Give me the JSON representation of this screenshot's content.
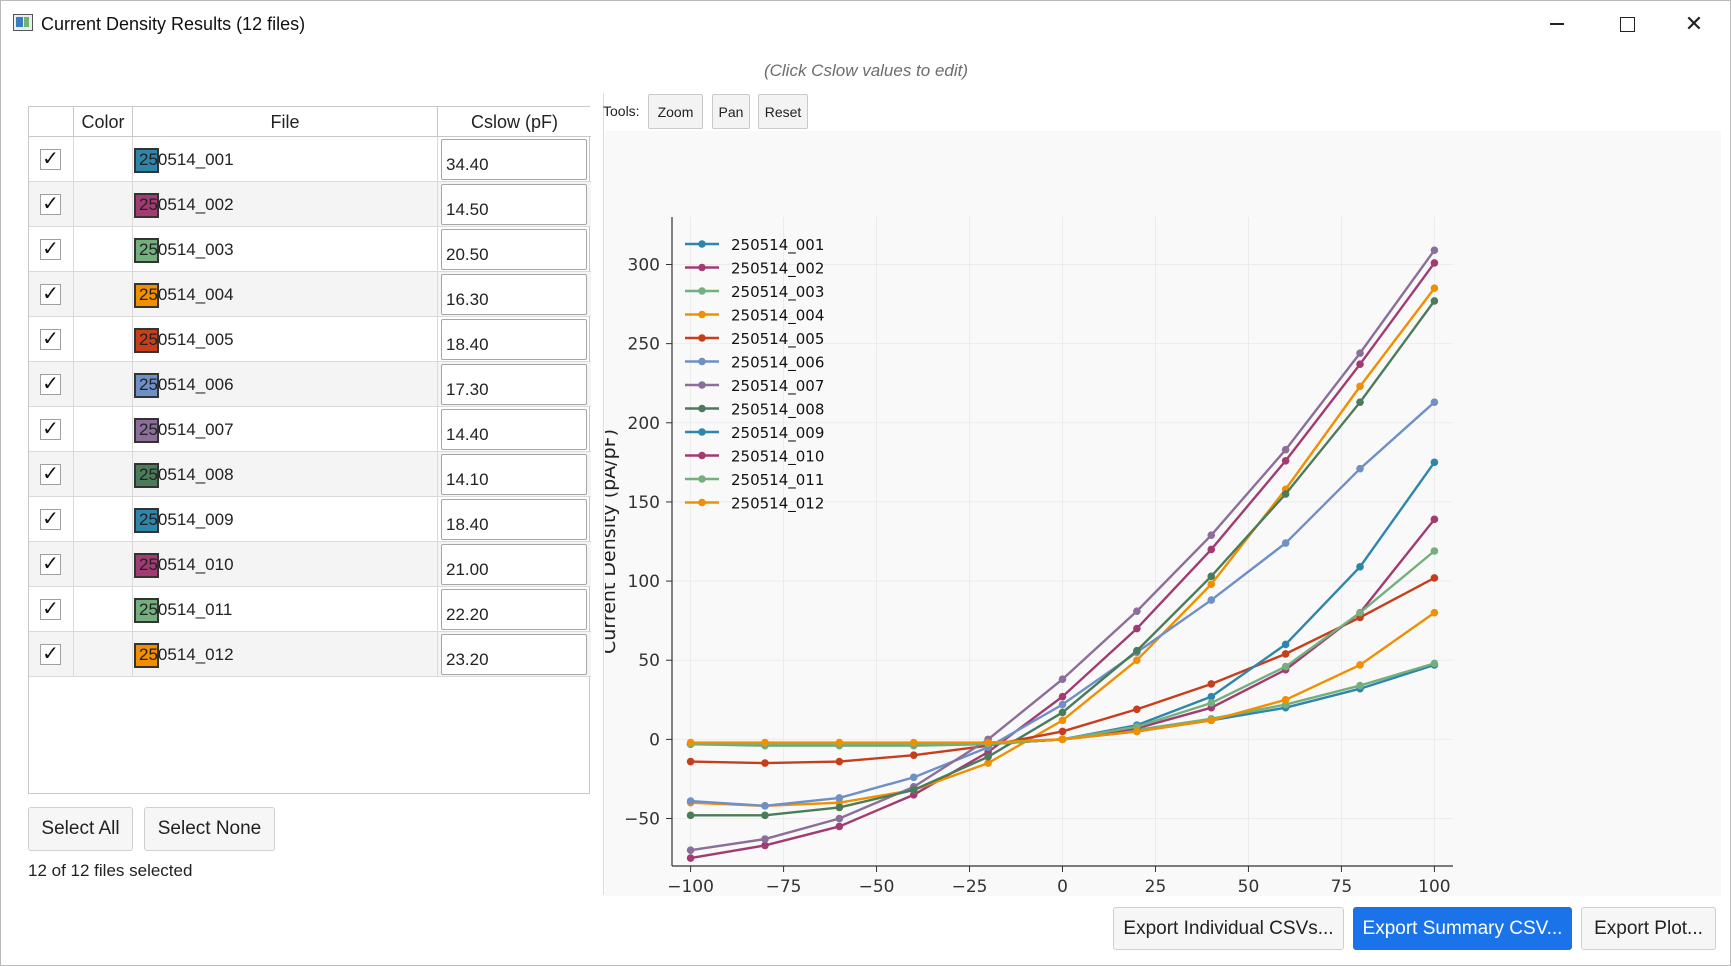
{
  "window": {
    "title": "Current Density Results (12 files)"
  },
  "hint": "(Click Cslow values to edit)",
  "table": {
    "headers": {
      "check": "",
      "color": "Color",
      "file": "File",
      "cslow": "Cslow (pF)"
    },
    "rows": [
      {
        "checked": "✓",
        "color": "#2e86ab",
        "file": "250514_001",
        "cslow": "34.40"
      },
      {
        "checked": "✓",
        "color": "#a23b72",
        "file": "250514_002",
        "cslow": "14.50"
      },
      {
        "checked": "✓",
        "color": "#73b07d",
        "file": "250514_003",
        "cslow": "20.50"
      },
      {
        "checked": "✓",
        "color": "#f18f01",
        "file": "250514_004",
        "cslow": "16.30"
      },
      {
        "checked": "✓",
        "color": "#c73e1d",
        "file": "250514_005",
        "cslow": "18.40"
      },
      {
        "checked": "✓",
        "color": "#6f8fc7",
        "file": "250514_006",
        "cslow": "17.30"
      },
      {
        "checked": "✓",
        "color": "#8b6e99",
        "file": "250514_007",
        "cslow": "14.40"
      },
      {
        "checked": "✓",
        "color": "#4a7c59",
        "file": "250514_008",
        "cslow": "14.10"
      },
      {
        "checked": "✓",
        "color": "#2e86ab",
        "file": "250514_009",
        "cslow": "18.40"
      },
      {
        "checked": "✓",
        "color": "#a23b72",
        "file": "250514_010",
        "cslow": "21.00"
      },
      {
        "checked": "✓",
        "color": "#73b07d",
        "file": "250514_011",
        "cslow": "22.20"
      },
      {
        "checked": "✓",
        "color": "#f18f01",
        "file": "250514_012",
        "cslow": "23.20"
      }
    ]
  },
  "controls": {
    "select_all": "Select All",
    "select_none": "Select None",
    "status": "12 of 12 files selected"
  },
  "tools": {
    "label": "Tools:",
    "zoom": "Zoom",
    "pan": "Pan",
    "reset": "Reset"
  },
  "export": {
    "individual": "Export Individual CSVs...",
    "summary": "Export Summary CSV...",
    "plot": "Export Plot..."
  },
  "chart_data": {
    "type": "line",
    "title": "",
    "xlabel": "Voltage (mV)",
    "ylabel": "Current Density (pA/pF)",
    "xlim": [
      -105,
      105
    ],
    "ylim": [
      -80,
      330
    ],
    "xticks": [
      -100,
      -75,
      -50,
      -25,
      0,
      25,
      50,
      75,
      100
    ],
    "yticks": [
      -50,
      0,
      50,
      100,
      150,
      200,
      250,
      300
    ],
    "xtick_labels": [
      "−100",
      "−75",
      "−50",
      "−25",
      "0",
      "25",
      "50",
      "75",
      "100"
    ],
    "ytick_labels": [
      "−50",
      "0",
      "50",
      "100",
      "150",
      "200",
      "250",
      "300"
    ],
    "grid": true,
    "legend": "top-left",
    "x": [
      -100,
      -80,
      -60,
      -40,
      -20,
      0,
      20,
      40,
      60,
      80,
      100
    ],
    "series": [
      {
        "name": "250514_001",
        "color": "#2e86ab",
        "values": [
          -3,
          -3,
          -3,
          -3,
          -2,
          0,
          5,
          12,
          20,
          32,
          47
        ]
      },
      {
        "name": "250514_002",
        "color": "#a23b72",
        "values": [
          -75,
          -67,
          -55,
          -35,
          -8,
          27,
          70,
          120,
          176,
          237,
          301
        ]
      },
      {
        "name": "250514_003",
        "color": "#73b07d",
        "values": [
          -3,
          -4,
          -4,
          -4,
          -3,
          0,
          6,
          13,
          22,
          34,
          48
        ]
      },
      {
        "name": "250514_004",
        "color": "#f18f01",
        "values": [
          -40,
          -42,
          -40,
          -32,
          -15,
          12,
          50,
          98,
          158,
          223,
          285
        ]
      },
      {
        "name": "250514_005",
        "color": "#c73e1d",
        "values": [
          -14,
          -15,
          -14,
          -10,
          -4,
          5,
          19,
          35,
          54,
          77,
          102
        ]
      },
      {
        "name": "250514_006",
        "color": "#6f8fc7",
        "values": [
          -39,
          -42,
          -37,
          -24,
          -5,
          22,
          55,
          88,
          124,
          171,
          213
        ]
      },
      {
        "name": "250514_007",
        "color": "#8b6e99",
        "values": [
          -70,
          -63,
          -50,
          -30,
          0,
          38,
          81,
          129,
          183,
          244,
          309
        ]
      },
      {
        "name": "250514_008",
        "color": "#4a7c59",
        "values": [
          -48,
          -48,
          -43,
          -32,
          -11,
          17,
          56,
          103,
          155,
          213,
          277
        ]
      },
      {
        "name": "250514_009",
        "color": "#2e86ab",
        "values": [
          -3,
          -3,
          -3,
          -3,
          -3,
          0,
          9,
          27,
          60,
          109,
          175
        ]
      },
      {
        "name": "250514_010",
        "color": "#a23b72",
        "values": [
          -3,
          -3,
          -3,
          -3,
          -3,
          0,
          7,
          20,
          44,
          80,
          139
        ]
      },
      {
        "name": "250514_011",
        "color": "#73b07d",
        "values": [
          -3,
          -3,
          -3,
          -3,
          -3,
          0,
          8,
          23,
          46,
          80,
          119
        ]
      },
      {
        "name": "250514_012",
        "color": "#f18f01",
        "values": [
          -2,
          -2,
          -2,
          -2,
          -2,
          0,
          5,
          12,
          25,
          47,
          80
        ]
      }
    ]
  }
}
